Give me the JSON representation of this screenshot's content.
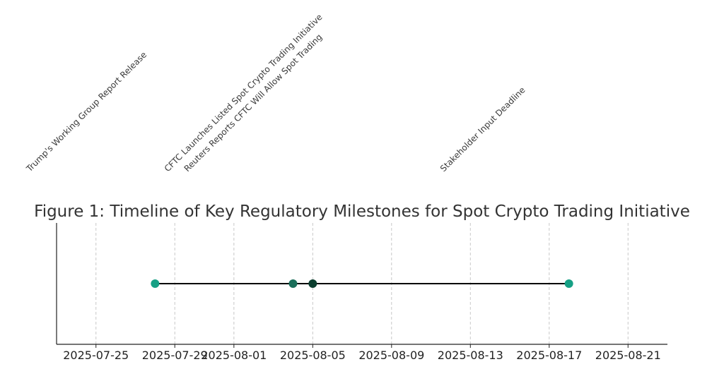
{
  "chart_data": {
    "type": "scatter",
    "title": "Figure 1: Timeline of Key Regulatory Milestones for Spot Crypto Trading Initiative",
    "xlabel": "",
    "ylabel": "",
    "grid": "vertical dashed",
    "x_ticks": [
      "2025-07-25",
      "2025-07-29",
      "2025-08-01",
      "2025-08-05",
      "2025-08-09",
      "2025-08-13",
      "2025-08-17",
      "2025-08-21"
    ],
    "xlim": [
      "2025-07-23",
      "2025-08-23"
    ],
    "events": [
      {
        "date": "2025-07-28",
        "label": "Trump's Working Group Report Release",
        "color": "#16a085"
      },
      {
        "date": "2025-08-04",
        "label": "CFTC Launches Listed Spot Crypto Trading Initiative",
        "color": "#1a6e5a"
      },
      {
        "date": "2025-08-05",
        "label": "Reuters Reports CFTC Will Allow Spot Trading",
        "color": "#0b3d2e"
      },
      {
        "date": "2025-08-18",
        "label": "Stakeholder Input Deadline",
        "color": "#16a085"
      }
    ]
  }
}
